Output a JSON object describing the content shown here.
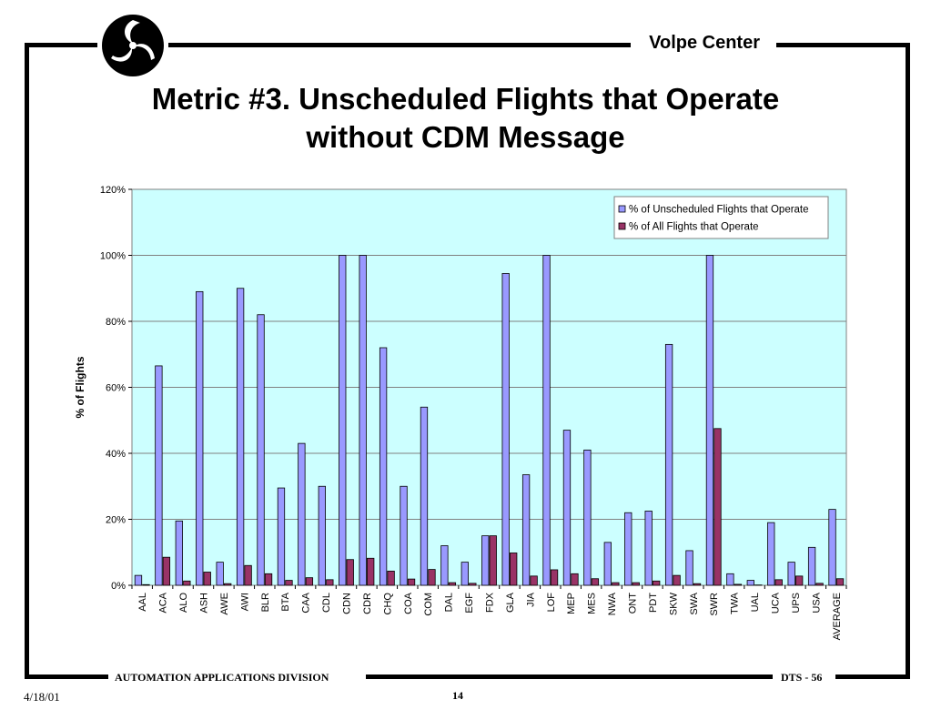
{
  "header": {
    "org": "Volpe Center",
    "logo_icon": "dot-triskelion-logo-icon"
  },
  "title_line1": "Metric #3. Unscheduled Flights that Operate",
  "title_line2": "without CDM Message",
  "footer": {
    "division": "AUTOMATION APPLICATIONS DIVISION",
    "doc_id": "DTS - 56",
    "date": "4/18/01",
    "page": "14"
  },
  "chart_data": {
    "type": "bar",
    "ylabel": "% of Flights",
    "ylim": [
      0,
      120
    ],
    "yticks": [
      "0%",
      "20%",
      "40%",
      "60%",
      "80%",
      "100%",
      "120%"
    ],
    "grid": true,
    "legend_position": "top-right",
    "plot_background": "#ccffff",
    "categories": [
      "AAL",
      "ACA",
      "ALO",
      "ASH",
      "AWE",
      "AWI",
      "BLR",
      "BTA",
      "CAA",
      "CDL",
      "CDN",
      "CDR",
      "CHQ",
      "COA",
      "COM",
      "DAL",
      "EGF",
      "FDX",
      "GLA",
      "JIA",
      "LOF",
      "MEP",
      "MES",
      "NWA",
      "ONT",
      "PDT",
      "SKW",
      "SWA",
      "SWR",
      "TWA",
      "UAL",
      "UCA",
      "UPS",
      "USA",
      "AVERAGE"
    ],
    "series": [
      {
        "name": "% of Unscheduled Flights that Operate",
        "color": "#9999ff",
        "values": [
          3,
          66.5,
          19.5,
          89,
          7,
          90,
          82,
          29.5,
          43,
          30,
          100,
          100,
          72,
          30,
          54,
          12,
          7,
          15,
          94.5,
          33.5,
          100,
          47,
          41,
          13,
          22,
          22.5,
          73,
          10.5,
          100,
          3.5,
          1.5,
          19,
          7,
          11.5,
          23
        ]
      },
      {
        "name": "% of All Flights that Operate",
        "color": "#993366",
        "values": [
          0.2,
          8.5,
          1.3,
          4,
          0.5,
          6,
          3.5,
          1.5,
          2.3,
          1.7,
          7.8,
          8.2,
          4.3,
          1.9,
          4.8,
          0.8,
          0.6,
          15,
          9.8,
          2.8,
          4.7,
          3.5,
          2,
          0.8,
          0.8,
          1.3,
          3,
          0.5,
          47.5,
          0.3,
          0.1,
          1.7,
          2.8,
          0.6,
          2
        ]
      }
    ]
  }
}
